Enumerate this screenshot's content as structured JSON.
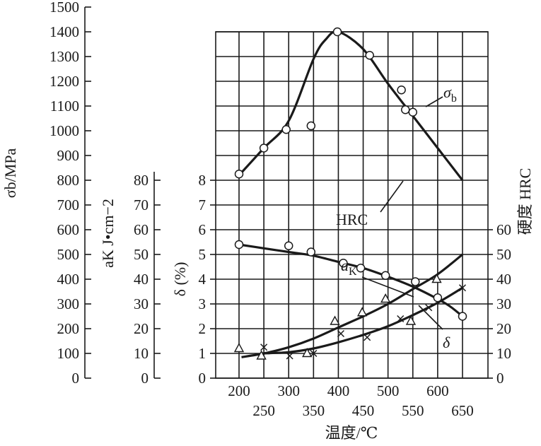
{
  "chart_data": {
    "type": "line",
    "xlabel": "温度/℃",
    "x_ticks_upper": [
      "200",
      "300",
      "400",
      "500",
      "600"
    ],
    "x_ticks_lower": [
      "250",
      "350",
      "450",
      "550",
      "650"
    ],
    "xlim": [
      180,
      660
    ],
    "axes": {
      "sigma_b": {
        "label": "σb/MPa",
        "ylim": [
          0,
          1500
        ],
        "ticks": [
          "0",
          "100",
          "200",
          "300",
          "400",
          "500",
          "600",
          "700",
          "800",
          "900",
          "1000",
          "1100",
          "1200",
          "1300",
          "1400",
          "1500"
        ]
      },
      "a_k": {
        "label": "aK J•cm−2",
        "ylim": [
          0,
          80
        ],
        "ticks": [
          "0",
          "10",
          "20",
          "30",
          "40",
          "50",
          "60",
          "70",
          "80"
        ]
      },
      "delta": {
        "label": "δ (%)",
        "ylim": [
          0,
          8
        ],
        "ticks": [
          "0",
          "1",
          "2",
          "3",
          "4",
          "5",
          "6",
          "7",
          "8"
        ]
      },
      "hrc": {
        "label": "硬度 HRC",
        "ylim": [
          0,
          60
        ],
        "ticks": [
          "0",
          "10",
          "20",
          "30",
          "40",
          "50",
          "60"
        ]
      }
    },
    "series": [
      {
        "name": "σb",
        "axis": "sigma_b",
        "marker": "circle",
        "curve_x": [
          200,
          250,
          300,
          350,
          375,
          400,
          450,
          500,
          550,
          600,
          650
        ],
        "curve_y": [
          820,
          930,
          1040,
          1290,
          1370,
          1400,
          1330,
          1190,
          1060,
          930,
          800
        ],
        "points_x": [
          200,
          250,
          295,
          345,
          398,
          463,
          527,
          535,
          550
        ],
        "points_y": [
          825,
          930,
          1005,
          1020,
          1400,
          1305,
          1165,
          1085,
          1075
        ]
      },
      {
        "name": "HRC",
        "axis": "hrc",
        "marker": "circle",
        "curve_x": [
          200,
          250,
          300,
          350,
          400,
          450,
          500,
          550,
          600,
          625,
          650
        ],
        "curve_y": [
          54,
          52.5,
          51,
          49.5,
          47,
          44.5,
          41,
          37,
          32,
          29,
          25
        ],
        "points_x": [
          200,
          300,
          345,
          410,
          445,
          495,
          555,
          600,
          650
        ],
        "points_y": [
          54,
          53.5,
          51,
          46.5,
          44.5,
          41.5,
          39,
          32.5,
          25
        ]
      },
      {
        "name": "aK",
        "axis": "a_k",
        "marker": "triangle",
        "curve_x": [
          205,
          250,
          300,
          350,
          400,
          450,
          500,
          550,
          600,
          650
        ],
        "curve_y": [
          8.5,
          10,
          12.5,
          16,
          20.5,
          25,
          30,
          36,
          42,
          50
        ],
        "points_x": [
          200,
          245,
          337,
          393,
          448,
          495,
          546,
          598
        ],
        "points_y": [
          12,
          9,
          10,
          23,
          26.5,
          32,
          23,
          40
        ]
      },
      {
        "name": "δ",
        "axis": "delta",
        "marker": "x",
        "curve_x": [
          245,
          300,
          350,
          400,
          450,
          500,
          550,
          600,
          650
        ],
        "curve_y": [
          1.0,
          1.05,
          1.2,
          1.45,
          1.75,
          2.1,
          2.55,
          3.05,
          3.65
        ],
        "points_x": [
          250,
          302,
          350,
          405,
          458,
          525,
          582,
          650
        ],
        "points_y": [
          1.25,
          0.9,
          1.0,
          1.8,
          1.65,
          2.4,
          2.85,
          3.65
        ]
      }
    ],
    "annotations": [
      {
        "text": "σb",
        "series": "σb"
      },
      {
        "text": "HRC",
        "series": "HRC"
      },
      {
        "text": "aK",
        "series": "aK"
      },
      {
        "text": "δ",
        "series": "δ"
      }
    ]
  }
}
